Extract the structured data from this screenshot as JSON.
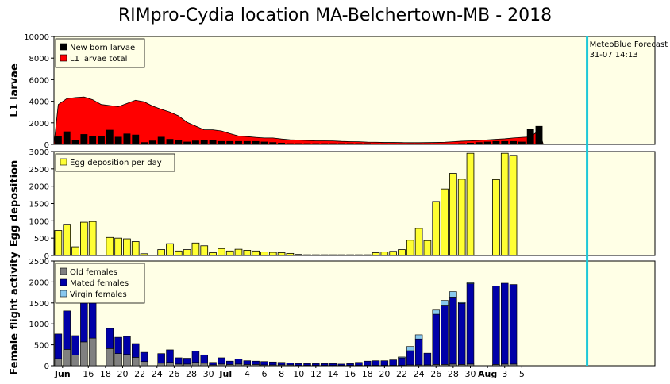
{
  "title": "RIMpro-Cydia location  MA-Belchertown-MB - 2018",
  "forecast": {
    "label": "MeteoBlue Forecast",
    "timestamp": " 31-07 14:13",
    "day": 62.1,
    "color": "#1ec8d8"
  },
  "colors": {
    "panel_bg": "#ffffe6",
    "black_bar": "#000000",
    "red_area": "#ff0000",
    "yellow_bar": "#ffff33",
    "old_females": "#808080",
    "mated_females": "#0000a8",
    "virgin_females": "#88c8ee"
  },
  "x_axis": {
    "day_min": 0,
    "day_max": 70,
    "ticks": [
      {
        "day": 1,
        "label": "Jun",
        "bold": true
      },
      {
        "day": 4,
        "label": "16",
        "bold": false
      },
      {
        "day": 6,
        "label": "18",
        "bold": false
      },
      {
        "day": 8,
        "label": "20",
        "bold": false
      },
      {
        "day": 10,
        "label": "22",
        "bold": false
      },
      {
        "day": 12,
        "label": "24",
        "bold": false
      },
      {
        "day": 14,
        "label": "26",
        "bold": false
      },
      {
        "day": 16,
        "label": "28",
        "bold": false
      },
      {
        "day": 18,
        "label": "30",
        "bold": false
      },
      {
        "day": 20,
        "label": "Jul",
        "bold": true
      },
      {
        "day": 22.5,
        "label": "4",
        "bold": false
      },
      {
        "day": 24.5,
        "label": "6",
        "bold": false
      },
      {
        "day": 26.5,
        "label": "8",
        "bold": false
      },
      {
        "day": 28.5,
        "label": "10",
        "bold": false
      },
      {
        "day": 30.5,
        "label": "12",
        "bold": false
      },
      {
        "day": 32.5,
        "label": "14",
        "bold": false
      },
      {
        "day": 34.5,
        "label": "16",
        "bold": false
      },
      {
        "day": 36.5,
        "label": "18",
        "bold": false
      },
      {
        "day": 38.5,
        "label": "20",
        "bold": false
      },
      {
        "day": 40.5,
        "label": "22",
        "bold": false
      },
      {
        "day": 42.5,
        "label": "24",
        "bold": false
      },
      {
        "day": 44.5,
        "label": "26",
        "bold": false
      },
      {
        "day": 46.5,
        "label": "28",
        "bold": false
      },
      {
        "day": 48.5,
        "label": "30",
        "bold": false
      },
      {
        "day": 50.5,
        "label": "Aug",
        "bold": true
      },
      {
        "day": 52.5,
        "label": "3",
        "bold": false
      },
      {
        "day": 54.5,
        "label": "5",
        "bold": false
      }
    ]
  },
  "chart_data": [
    {
      "type": "bar",
      "ylabel": "L1 larvae",
      "ylim": [
        0,
        10000
      ],
      "yticks": [
        0,
        2000,
        4000,
        6000,
        8000,
        10000
      ],
      "legend": [
        "New born larvae",
        "L1 larvae total"
      ],
      "l1_total": {
        "days": [
          0.5,
          1.5,
          2.5,
          3.5,
          4.5,
          5.5,
          6.5,
          7.5,
          8.5,
          9.5,
          10.5,
          11.5,
          12.5,
          13.5,
          14.5,
          15.5,
          16.5,
          17.5,
          18.5,
          19.5,
          20.5,
          21.5,
          22.5,
          23.5,
          24.5,
          25.5,
          26.5,
          27.5,
          28.5,
          29.5,
          30.5,
          31.5,
          32.5,
          33.5,
          34.5,
          35.5,
          36.5,
          37.5,
          38.5,
          39.5,
          40.5,
          41.5,
          42.5,
          43.5,
          44.5,
          45.5,
          46.5,
          47.5,
          48.5,
          49.5,
          50.5,
          51.5,
          52.5,
          53.5,
          54.5,
          55.5,
          56.5
        ],
        "values": [
          3700,
          4250,
          4350,
          4400,
          4150,
          3700,
          3600,
          3500,
          3800,
          4100,
          3950,
          3550,
          3250,
          3000,
          2650,
          2050,
          1700,
          1350,
          1350,
          1250,
          1000,
          780,
          720,
          650,
          600,
          600,
          500,
          430,
          400,
          360,
          330,
          330,
          320,
          280,
          260,
          250,
          210,
          200,
          180,
          180,
          170,
          160,
          160,
          170,
          180,
          200,
          250,
          300,
          330,
          370,
          420,
          480,
          520,
          600,
          650,
          700,
          1300
        ]
      },
      "newborn": {
        "days": [
          0.5,
          1.5,
          2.5,
          3.5,
          4.5,
          5.5,
          6.5,
          7.5,
          8.5,
          9.5,
          10.5,
          11.5,
          12.5,
          13.5,
          14.5,
          15.5,
          16.5,
          17.5,
          18.5,
          19.5,
          20.5,
          21.5,
          22.5,
          23.5,
          24.5,
          25.5,
          26.5,
          27.5,
          28.5,
          29.5,
          30.5,
          31.5,
          32.5,
          33.5,
          34.5,
          35.5,
          36.5,
          37.5,
          38.5,
          39.5,
          40.5,
          41.5,
          42.5,
          43.5,
          44.5,
          45.5,
          46.5,
          47.5,
          48.5,
          49.5,
          50.5,
          51.5,
          52.5,
          53.5,
          54.5,
          55.5,
          56.5
        ],
        "values": [
          800,
          1200,
          400,
          950,
          800,
          800,
          1350,
          700,
          1000,
          900,
          200,
          350,
          700,
          500,
          400,
          250,
          350,
          400,
          400,
          300,
          300,
          300,
          300,
          300,
          250,
          200,
          150,
          100,
          100,
          100,
          100,
          100,
          100,
          100,
          100,
          100,
          100,
          80,
          80,
          80,
          80,
          80,
          80,
          80,
          80,
          80,
          80,
          100,
          150,
          200,
          250,
          300,
          300,
          300,
          250,
          1400,
          1700
        ]
      }
    },
    {
      "type": "bar",
      "ylabel": "Egg deposition",
      "ylim": [
        0,
        3000
      ],
      "yticks": [
        0,
        500,
        1000,
        1500,
        2000,
        2500,
        3000
      ],
      "legend": [
        "Egg deposition per day"
      ],
      "days": [
        0.5,
        1.5,
        2.5,
        3.5,
        4.5,
        6.5,
        7.5,
        8.5,
        9.5,
        10.5,
        12.5,
        13.5,
        14.5,
        15.5,
        16.5,
        17.5,
        18.5,
        19.5,
        20.5,
        21.5,
        22.5,
        23.5,
        24.5,
        25.5,
        26.5,
        27.5,
        28.5,
        29.5,
        30.5,
        31.5,
        32.5,
        33.5,
        34.5,
        35.5,
        36.5,
        37.5,
        38.5,
        39.5,
        40.5,
        41.5,
        42.5,
        43.5,
        44.5,
        45.5,
        46.5,
        47.5,
        48.5,
        51.5,
        52.5,
        53.5
      ],
      "values": [
        720,
        900,
        250,
        960,
        980,
        520,
        500,
        480,
        400,
        50,
        170,
        340,
        130,
        170,
        360,
        280,
        80,
        200,
        130,
        180,
        150,
        130,
        100,
        90,
        80,
        60,
        30,
        20,
        20,
        20,
        20,
        20,
        20,
        20,
        20,
        80,
        100,
        120,
        170,
        440,
        780,
        430,
        1560,
        1920,
        2370,
        2200,
        2950,
        2190,
        2950,
        2890
      ]
    },
    {
      "type": "bar",
      "ylabel": "Female flight activity",
      "ylim": [
        0,
        2500
      ],
      "yticks": [
        0,
        500,
        1000,
        1500,
        2000,
        2500
      ],
      "legend": [
        "Old females",
        "Mated females",
        "Virgin females"
      ],
      "days": [
        0.5,
        1.5,
        2.5,
        3.5,
        4.5,
        6.5,
        7.5,
        8.5,
        9.5,
        10.5,
        12.5,
        13.5,
        14.5,
        15.5,
        16.5,
        17.5,
        18.5,
        19.5,
        20.5,
        21.5,
        22.5,
        23.5,
        24.5,
        25.5,
        26.5,
        27.5,
        28.5,
        29.5,
        30.5,
        31.5,
        32.5,
        33.5,
        34.5,
        35.5,
        36.5,
        37.5,
        38.5,
        39.5,
        40.5,
        41.5,
        42.5,
        43.5,
        44.5,
        45.5,
        46.5,
        47.5,
        48.5,
        51.5,
        52.5,
        53.5
      ],
      "old": [
        170,
        390,
        260,
        570,
        660,
        410,
        290,
        270,
        200,
        100,
        60,
        80,
        40,
        40,
        80,
        60,
        20,
        40,
        30,
        40,
        30,
        30,
        20,
        20,
        20,
        20,
        10,
        10,
        10,
        10,
        10,
        10,
        10,
        10,
        10,
        10,
        10,
        10,
        10,
        20,
        20,
        20,
        30,
        30,
        40,
        30,
        40,
        30,
        40,
        40
      ],
      "mated": [
        590,
        920,
        460,
        1130,
        1070,
        480,
        390,
        430,
        330,
        220,
        230,
        300,
        150,
        140,
        270,
        200,
        60,
        150,
        80,
        120,
        90,
        80,
        80,
        70,
        60,
        50,
        40,
        40,
        40,
        40,
        40,
        30,
        40,
        70,
        100,
        110,
        110,
        130,
        180,
        340,
        620,
        280,
        1200,
        1400,
        1600,
        1460,
        1920,
        1870,
        1930,
        1900
      ],
      "virgin": [
        0,
        0,
        0,
        0,
        0,
        0,
        0,
        0,
        0,
        0,
        0,
        0,
        0,
        0,
        0,
        0,
        0,
        0,
        0,
        0,
        0,
        0,
        0,
        0,
        0,
        0,
        0,
        0,
        0,
        0,
        0,
        0,
        0,
        0,
        0,
        0,
        0,
        0,
        20,
        100,
        100,
        0,
        100,
        130,
        130,
        20,
        20,
        0,
        0,
        0
      ]
    }
  ]
}
